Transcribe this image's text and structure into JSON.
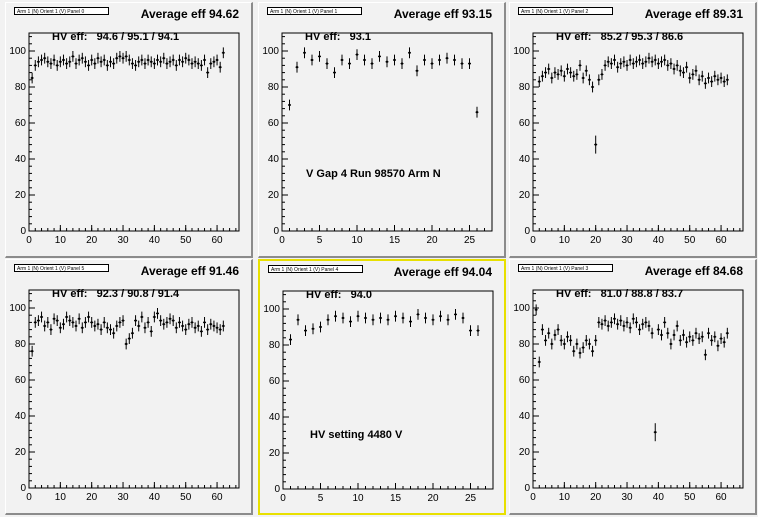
{
  "panels": [
    {
      "title": "Arm 1 (N) Orient 1 (V) Panel 0",
      "average": "Average eff 94.62",
      "hv_eff": "HV eff:   94.6 / 95.1 / 94.1",
      "note": "",
      "selected": false,
      "chart_data": {
        "type": "scatter",
        "xlim": [
          0,
          67
        ],
        "ylim": [
          0,
          110
        ],
        "xticks": [
          0,
          10,
          20,
          30,
          40,
          50,
          60
        ],
        "yticks": [
          0,
          20,
          40,
          60,
          80,
          100
        ],
        "x": [
          1,
          2,
          3,
          4,
          5,
          6,
          7,
          8,
          9,
          10,
          11,
          12,
          13,
          14,
          15,
          16,
          17,
          18,
          19,
          20,
          21,
          22,
          23,
          24,
          25,
          26,
          27,
          28,
          29,
          30,
          31,
          32,
          33,
          34,
          35,
          36,
          37,
          38,
          39,
          40,
          41,
          42,
          43,
          44,
          45,
          46,
          47,
          48,
          49,
          50,
          51,
          52,
          53,
          54,
          55,
          56,
          57,
          58,
          59,
          60,
          61,
          62
        ],
        "y": [
          85,
          92,
          94,
          95,
          96,
          94,
          93,
          95,
          92,
          94,
          95,
          93,
          94,
          97,
          93,
          95,
          96,
          94,
          92,
          95,
          93,
          96,
          94,
          95,
          92,
          94,
          93,
          96,
          97,
          96,
          97,
          95,
          93,
          92,
          94,
          95,
          93,
          95,
          94,
          93,
          95,
          94,
          96,
          93,
          94,
          95,
          92,
          95,
          94,
          96,
          95,
          93,
          94,
          93,
          92,
          95,
          88,
          93,
          94,
          95,
          91,
          99
        ]
      }
    },
    {
      "title": "Arm 1 (N) Orient 1 (V) Panel 1",
      "average": "Average eff 93.15",
      "hv_eff": "HV eff:   93.1",
      "note": "V Gap 4 Run 98570 Arm N",
      "selected": false,
      "chart_data": {
        "type": "scatter",
        "xlim": [
          0,
          28
        ],
        "ylim": [
          0,
          110
        ],
        "xticks": [
          0,
          5,
          10,
          15,
          20,
          25
        ],
        "yticks": [
          0,
          20,
          40,
          60,
          80,
          100
        ],
        "x": [
          1,
          2,
          3,
          4,
          5,
          6,
          7,
          8,
          9,
          10,
          11,
          12,
          13,
          14,
          15,
          16,
          17,
          18,
          19,
          20,
          21,
          22,
          23,
          24,
          25,
          26
        ],
        "y": [
          70,
          91,
          99,
          95,
          97,
          93,
          88,
          95,
          93,
          98,
          95,
          93,
          97,
          94,
          95,
          93,
          99,
          89,
          95,
          93,
          95,
          96,
          95,
          93,
          93,
          66
        ]
      }
    },
    {
      "title": "Arm 1 (N) Orient 1 (V) Panel 2",
      "average": "Average eff 89.31",
      "hv_eff": "HV eff:   85.2 / 95.3 / 86.6",
      "note": "",
      "selected": false,
      "chart_data": {
        "type": "scatter",
        "xlim": [
          0,
          67
        ],
        "ylim": [
          0,
          110
        ],
        "xticks": [
          0,
          10,
          20,
          30,
          40,
          50,
          60
        ],
        "yticks": [
          0,
          20,
          40,
          60,
          80,
          100
        ],
        "x": [
          2,
          3,
          4,
          5,
          6,
          7,
          8,
          9,
          10,
          11,
          12,
          13,
          14,
          15,
          16,
          17,
          18,
          19,
          20,
          21,
          22,
          23,
          24,
          25,
          26,
          27,
          28,
          29,
          30,
          31,
          32,
          33,
          34,
          35,
          36,
          37,
          38,
          39,
          40,
          41,
          42,
          43,
          44,
          45,
          46,
          47,
          48,
          49,
          50,
          51,
          52,
          53,
          54,
          55,
          56,
          57,
          58,
          59,
          60,
          61,
          62
        ],
        "y": [
          83,
          86,
          88,
          90,
          85,
          88,
          87,
          89,
          86,
          90,
          88,
          86,
          87,
          92,
          85,
          89,
          84,
          80,
          48,
          84,
          87,
          92,
          94,
          93,
          95,
          91,
          93,
          94,
          92,
          95,
          93,
          94,
          95,
          93,
          94,
          96,
          94,
          95,
          93,
          94,
          95,
          92,
          93,
          90,
          92,
          89,
          88,
          91,
          85,
          87,
          89,
          84,
          86,
          82,
          85,
          83,
          86,
          84,
          85,
          83,
          84
        ]
      }
    },
    {
      "title": "Arm 1 (N) Orient 1 (V) Panel 5",
      "average": "Average eff 91.46",
      "hv_eff": "HV eff:   92.3 / 90.8 / 91.4",
      "note": "",
      "selected": false,
      "chart_data": {
        "type": "scatter",
        "xlim": [
          0,
          67
        ],
        "ylim": [
          0,
          110
        ],
        "xticks": [
          0,
          10,
          20,
          30,
          40,
          50,
          60
        ],
        "yticks": [
          0,
          20,
          40,
          60,
          80,
          100
        ],
        "x": [
          1,
          2,
          3,
          4,
          5,
          6,
          7,
          8,
          9,
          10,
          11,
          12,
          13,
          14,
          15,
          16,
          17,
          18,
          19,
          20,
          21,
          22,
          23,
          24,
          25,
          26,
          27,
          28,
          29,
          30,
          31,
          32,
          33,
          34,
          35,
          36,
          37,
          38,
          39,
          40,
          41,
          42,
          43,
          44,
          45,
          46,
          47,
          48,
          49,
          50,
          51,
          52,
          53,
          54,
          55,
          56,
          57,
          58,
          59,
          60,
          61,
          62
        ],
        "y": [
          76,
          92,
          93,
          95,
          90,
          92,
          88,
          94,
          93,
          89,
          91,
          95,
          93,
          92,
          90,
          94,
          89,
          92,
          95,
          92,
          90,
          91,
          88,
          92,
          89,
          88,
          86,
          90,
          92,
          93,
          80,
          83,
          86,
          93,
          90,
          95,
          89,
          92,
          87,
          95,
          97,
          93,
          91,
          92,
          94,
          93,
          89,
          92,
          90,
          88,
          91,
          92,
          89,
          90,
          87,
          92,
          88,
          91,
          90,
          89,
          88,
          90
        ]
      }
    },
    {
      "title": "Arm 1 (N) Orient 1 (V) Panel 4",
      "average": "Average eff 94.04",
      "hv_eff": "HV eff:   94.0",
      "note": "HV setting 4480 V",
      "selected": true,
      "chart_data": {
        "type": "scatter",
        "xlim": [
          0,
          28
        ],
        "ylim": [
          0,
          110
        ],
        "xticks": [
          0,
          5,
          10,
          15,
          20,
          25
        ],
        "yticks": [
          0,
          20,
          40,
          60,
          80,
          100
        ],
        "x": [
          1,
          2,
          3,
          4,
          5,
          6,
          7,
          8,
          9,
          10,
          11,
          12,
          13,
          14,
          15,
          16,
          17,
          18,
          19,
          20,
          21,
          22,
          23,
          24,
          25,
          26
        ],
        "y": [
          83,
          94,
          88,
          89,
          90,
          94,
          96,
          95,
          93,
          96,
          95,
          94,
          95,
          94,
          96,
          95,
          93,
          97,
          95,
          94,
          96,
          94,
          97,
          95,
          88,
          88
        ]
      }
    },
    {
      "title": "Arm 1 (N) Orient 1 (V) Panel 3",
      "average": "Average eff 84.68",
      "hv_eff": "HV eff:   81.0 / 88.8 / 83.7",
      "note": "",
      "selected": false,
      "chart_data": {
        "type": "scatter",
        "xlim": [
          0,
          67
        ],
        "ylim": [
          0,
          110
        ],
        "xticks": [
          0,
          10,
          20,
          30,
          40,
          50,
          60
        ],
        "yticks": [
          0,
          20,
          40,
          60,
          80,
          100
        ],
        "x": [
          1,
          2,
          3,
          4,
          5,
          6,
          7,
          8,
          9,
          10,
          11,
          12,
          13,
          14,
          15,
          16,
          17,
          18,
          19,
          20,
          21,
          22,
          23,
          24,
          25,
          26,
          27,
          28,
          29,
          30,
          31,
          32,
          33,
          34,
          35,
          36,
          37,
          38,
          39,
          40,
          41,
          42,
          43,
          44,
          45,
          46,
          47,
          48,
          49,
          50,
          51,
          52,
          53,
          54,
          55,
          56,
          57,
          58,
          59,
          60,
          61,
          62
        ],
        "y": [
          99,
          70,
          88,
          82,
          86,
          80,
          85,
          88,
          82,
          80,
          84,
          82,
          76,
          80,
          75,
          78,
          82,
          80,
          76,
          82,
          92,
          91,
          93,
          90,
          92,
          94,
          91,
          93,
          90,
          92,
          89,
          94,
          92,
          88,
          91,
          92,
          90,
          86,
          31,
          88,
          85,
          92,
          86,
          80,
          85,
          90,
          82,
          85,
          81,
          84,
          82,
          86,
          83,
          84,
          74,
          86,
          82,
          84,
          79,
          83,
          81,
          86
        ]
      }
    }
  ]
}
